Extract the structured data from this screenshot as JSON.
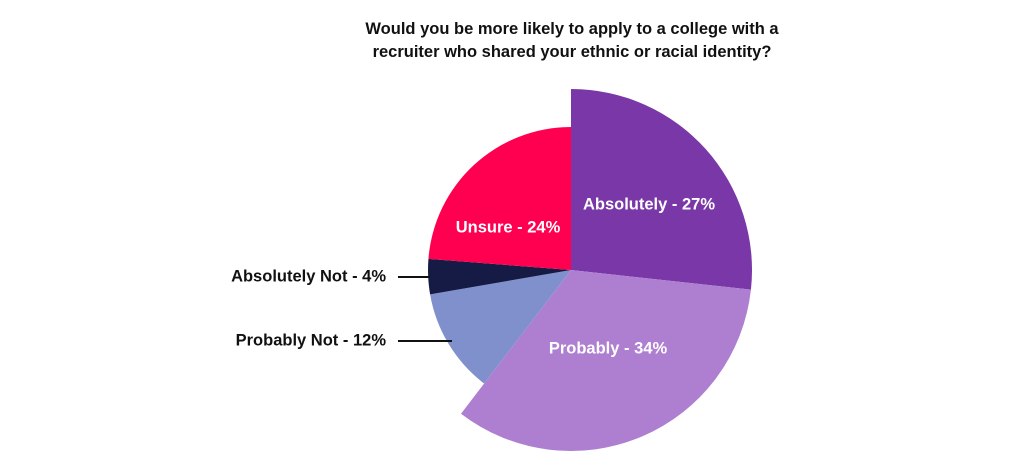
{
  "chart_data": {
    "type": "pie",
    "title_lines": [
      "Would you be more likely to apply to a college with a",
      "recruiter who shared your ethnic or racial identity?"
    ],
    "slices": [
      {
        "name": "Absolutely",
        "label": "Absolutely - 27%",
        "value": 27,
        "color": "#7a37a8",
        "radius_scale": 1.0,
        "label_position": "inside"
      },
      {
        "name": "Probably",
        "label": "Probably - 34%",
        "value": 34,
        "color": "#ae7fd1",
        "radius_scale": 1.0,
        "label_position": "inside"
      },
      {
        "name": "Probably Not",
        "label": "Probably Not - 12%",
        "value": 12,
        "color": "#8090cc",
        "radius_scale": 0.79,
        "label_position": "outside-left"
      },
      {
        "name": "Absolutely Not",
        "label": "Absolutely Not - 4%",
        "value": 4,
        "color": "#151b45",
        "radius_scale": 0.79,
        "label_position": "outside-left"
      },
      {
        "name": "Unsure",
        "label": "Unsure - 24%",
        "value": 24,
        "color": "#ff0050",
        "radius_scale": 0.79,
        "label_position": "inside"
      }
    ],
    "start_angle_deg": 0,
    "direction": "clockwise"
  }
}
